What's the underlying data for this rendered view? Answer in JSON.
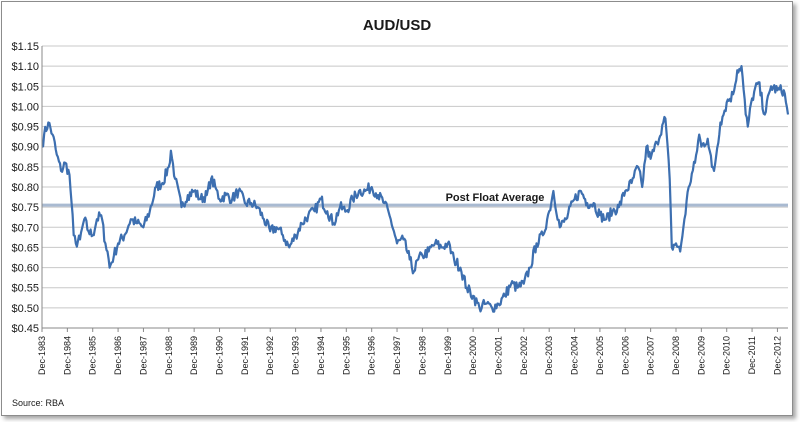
{
  "chart_data": {
    "type": "line",
    "title": "AUD/USD",
    "xlabel": "",
    "ylabel": "",
    "source": "Source: RBA",
    "ylim": [
      0.45,
      1.15
    ],
    "y_ticks": [
      "$0.45",
      "$0.50",
      "$0.55",
      "$0.60",
      "$0.65",
      "$0.70",
      "$0.75",
      "$0.80",
      "$0.85",
      "$0.90",
      "$0.95",
      "$1.00",
      "$1.05",
      "$1.10",
      "$1.15"
    ],
    "y_tick_values": [
      0.45,
      0.5,
      0.55,
      0.6,
      0.65,
      0.7,
      0.75,
      0.8,
      0.85,
      0.9,
      0.95,
      1.0,
      1.05,
      1.1,
      1.15
    ],
    "grid": true,
    "x_range": [
      "1983-12",
      "2013-05"
    ],
    "x_ticks": [
      "Dec-1983",
      "Dec-1984",
      "Dec-1985",
      "Dec-1986",
      "Dec-1987",
      "Dec-1988",
      "Dec-1989",
      "Dec-1990",
      "Dec-1991",
      "Dec-1992",
      "Dec-1993",
      "Dec-1994",
      "Dec-1995",
      "Dec-1996",
      "Dec-1997",
      "Dec-1998",
      "Dec-1999",
      "Dec-2000",
      "Dec-2001",
      "Dec-2002",
      "Dec-2003",
      "Dec-2004",
      "Dec-2005",
      "Dec-2006",
      "Dec-2007",
      "Dec-2008",
      "Dec-2009",
      "Dec-2010",
      "Dec-2011",
      "Dec-2012"
    ],
    "reference_line": {
      "label": "Post Float Average",
      "value": 0.755
    },
    "series": [
      {
        "color": "#3d6fb0",
        "points": [
          [
            "1983-12",
            0.9
          ],
          [
            "1984-01",
            0.93
          ],
          [
            "1984-03",
            0.96
          ],
          [
            "1984-05",
            0.93
          ],
          [
            "1984-07",
            0.88
          ],
          [
            "1984-09",
            0.84
          ],
          [
            "1984-11",
            0.86
          ],
          [
            "1985-01",
            0.83
          ],
          [
            "1985-02",
            0.76
          ],
          [
            "1985-03",
            0.68
          ],
          [
            "1985-04",
            0.66
          ],
          [
            "1985-06",
            0.67
          ],
          [
            "1985-08",
            0.72
          ],
          [
            "1985-10",
            0.69
          ],
          [
            "1985-12",
            0.68
          ],
          [
            "1986-02",
            0.72
          ],
          [
            "1986-04",
            0.73
          ],
          [
            "1986-06",
            0.66
          ],
          [
            "1986-07",
            0.64
          ],
          [
            "1986-08",
            0.6
          ],
          [
            "1986-10",
            0.63
          ],
          [
            "1986-12",
            0.66
          ],
          [
            "1987-03",
            0.68
          ],
          [
            "1987-06",
            0.72
          ],
          [
            "1987-09",
            0.71
          ],
          [
            "1987-12",
            0.7
          ],
          [
            "1988-03",
            0.74
          ],
          [
            "1988-06",
            0.8
          ],
          [
            "1988-09",
            0.81
          ],
          [
            "1988-12",
            0.85
          ],
          [
            "1989-01",
            0.89
          ],
          [
            "1989-03",
            0.82
          ],
          [
            "1989-06",
            0.75
          ],
          [
            "1989-09",
            0.78
          ],
          [
            "1989-12",
            0.79
          ],
          [
            "1990-03",
            0.77
          ],
          [
            "1990-06",
            0.78
          ],
          [
            "1990-08",
            0.82
          ],
          [
            "1990-10",
            0.8
          ],
          [
            "1990-12",
            0.77
          ],
          [
            "1991-03",
            0.78
          ],
          [
            "1991-06",
            0.77
          ],
          [
            "1991-09",
            0.79
          ],
          [
            "1991-12",
            0.76
          ],
          [
            "1992-03",
            0.76
          ],
          [
            "1992-06",
            0.75
          ],
          [
            "1992-09",
            0.72
          ],
          [
            "1992-12",
            0.69
          ],
          [
            "1993-03",
            0.7
          ],
          [
            "1993-06",
            0.68
          ],
          [
            "1993-09",
            0.65
          ],
          [
            "1993-12",
            0.68
          ],
          [
            "1994-03",
            0.71
          ],
          [
            "1994-06",
            0.73
          ],
          [
            "1994-09",
            0.74
          ],
          [
            "1994-12",
            0.77
          ],
          [
            "1995-03",
            0.74
          ],
          [
            "1995-06",
            0.71
          ],
          [
            "1995-09",
            0.75
          ],
          [
            "1995-12",
            0.74
          ],
          [
            "1996-03",
            0.77
          ],
          [
            "1996-06",
            0.79
          ],
          [
            "1996-09",
            0.79
          ],
          [
            "1996-12",
            0.8
          ],
          [
            "1997-03",
            0.78
          ],
          [
            "1997-06",
            0.76
          ],
          [
            "1997-09",
            0.72
          ],
          [
            "1997-12",
            0.66
          ],
          [
            "1998-03",
            0.67
          ],
          [
            "1998-06",
            0.62
          ],
          [
            "1998-08",
            0.59
          ],
          [
            "1998-10",
            0.62
          ],
          [
            "1998-12",
            0.63
          ],
          [
            "1999-03",
            0.64
          ],
          [
            "1999-06",
            0.66
          ],
          [
            "1999-09",
            0.65
          ],
          [
            "1999-12",
            0.66
          ],
          [
            "2000-03",
            0.62
          ],
          [
            "2000-06",
            0.6
          ],
          [
            "2000-09",
            0.55
          ],
          [
            "2000-12",
            0.53
          ],
          [
            "2001-03",
            0.5
          ],
          [
            "2001-06",
            0.51
          ],
          [
            "2001-09",
            0.5
          ],
          [
            "2001-12",
            0.51
          ],
          [
            "2002-03",
            0.53
          ],
          [
            "2002-06",
            0.56
          ],
          [
            "2002-09",
            0.55
          ],
          [
            "2002-12",
            0.56
          ],
          [
            "2003-03",
            0.6
          ],
          [
            "2003-06",
            0.66
          ],
          [
            "2003-09",
            0.68
          ],
          [
            "2003-12",
            0.74
          ],
          [
            "2004-02",
            0.79
          ],
          [
            "2004-05",
            0.7
          ],
          [
            "2004-08",
            0.72
          ],
          [
            "2004-12",
            0.77
          ],
          [
            "2005-03",
            0.79
          ],
          [
            "2005-06",
            0.76
          ],
          [
            "2005-09",
            0.76
          ],
          [
            "2005-12",
            0.73
          ],
          [
            "2006-03",
            0.72
          ],
          [
            "2006-06",
            0.74
          ],
          [
            "2006-09",
            0.75
          ],
          [
            "2006-12",
            0.79
          ],
          [
            "2007-03",
            0.81
          ],
          [
            "2007-06",
            0.85
          ],
          [
            "2007-08",
            0.8
          ],
          [
            "2007-10",
            0.9
          ],
          [
            "2007-12",
            0.87
          ],
          [
            "2008-03",
            0.91
          ],
          [
            "2008-06",
            0.96
          ],
          [
            "2008-07",
            0.97
          ],
          [
            "2008-09",
            0.82
          ],
          [
            "2008-10",
            0.65
          ],
          [
            "2008-12",
            0.66
          ],
          [
            "2009-02",
            0.64
          ],
          [
            "2009-04",
            0.72
          ],
          [
            "2009-06",
            0.8
          ],
          [
            "2009-09",
            0.86
          ],
          [
            "2009-11",
            0.93
          ],
          [
            "2009-12",
            0.9
          ],
          [
            "2010-03",
            0.92
          ],
          [
            "2010-05",
            0.85
          ],
          [
            "2010-06",
            0.84
          ],
          [
            "2010-09",
            0.96
          ],
          [
            "2010-11",
            0.99
          ],
          [
            "2010-12",
            1.01
          ],
          [
            "2011-03",
            1.03
          ],
          [
            "2011-05",
            1.09
          ],
          [
            "2011-07",
            1.1
          ],
          [
            "2011-09",
            0.98
          ],
          [
            "2011-10",
            0.95
          ],
          [
            "2011-12",
            1.02
          ],
          [
            "2012-03",
            1.06
          ],
          [
            "2012-06",
            0.98
          ],
          [
            "2012-09",
            1.05
          ],
          [
            "2012-12",
            1.04
          ],
          [
            "2013-03",
            1.04
          ],
          [
            "2013-05",
            0.98
          ]
        ]
      }
    ]
  }
}
